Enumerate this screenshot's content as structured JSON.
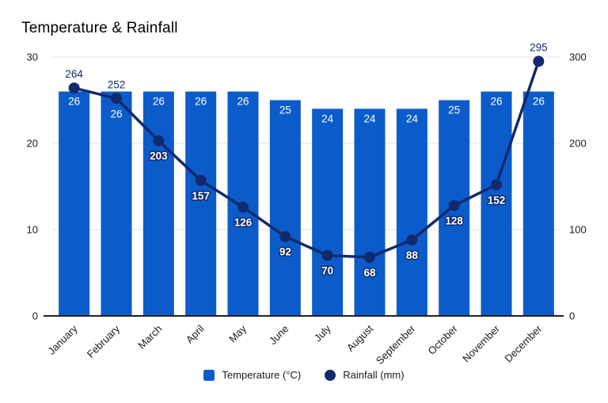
{
  "title": "Temperature & Rainfall",
  "chart_data": {
    "type": "combo (bar + line)",
    "categories": [
      "January",
      "February",
      "March",
      "April",
      "May",
      "June",
      "July",
      "August",
      "September",
      "October",
      "November",
      "December"
    ],
    "series": [
      {
        "name": "Temperature (°C)",
        "type": "bar",
        "axis": "left",
        "color": "#0b5cca",
        "values": [
          26,
          26,
          26,
          26,
          26,
          25,
          24,
          24,
          24,
          25,
          26,
          26
        ]
      },
      {
        "name": "Rainfall (mm)",
        "type": "line",
        "axis": "right",
        "color": "#112a6e",
        "values": [
          264,
          252,
          203,
          157,
          126,
          92,
          70,
          68,
          88,
          128,
          152,
          295
        ]
      }
    ],
    "left_axis": {
      "range": [
        0,
        30
      ],
      "ticks": [
        0,
        10,
        20,
        30
      ]
    },
    "right_axis": {
      "range": [
        0,
        300
      ],
      "ticks": [
        0,
        100,
        200,
        300
      ]
    },
    "grid": true,
    "grid_color": "#e2e2e2",
    "baseline_color": "#212121",
    "tick_label_color": "#1a1a1a",
    "data_labels": true,
    "bar_label_color": "#ffffff",
    "legend_position": "bottom",
    "background": "#ffffff"
  },
  "legend": {
    "items": [
      {
        "label": "Temperature (°C)",
        "swatch": "square"
      },
      {
        "label": "Rainfall (mm)",
        "swatch": "circle"
      }
    ]
  }
}
